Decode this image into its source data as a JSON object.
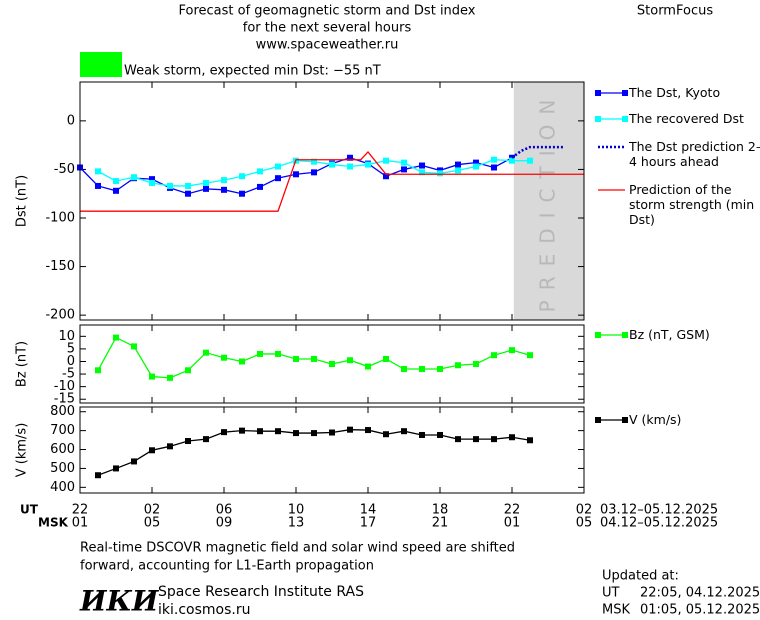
{
  "header": {
    "title_lines": [
      "Forecast of geomagnetic storm and Dst index",
      "for the next several hours",
      "www.spaceweather.ru"
    ],
    "brand": "StormFocus"
  },
  "status": {
    "label": "Weak storm, expected min Dst: −55 nT",
    "color": "#00ff00"
  },
  "chart_data": [
    {
      "type": "line",
      "ylabel": "Dst (nT)",
      "xlim": [
        0,
        28
      ],
      "ylim": [
        -205,
        40
      ],
      "yticks": [
        0,
        -50,
        -100,
        -150,
        -200
      ],
      "prediction_zone": {
        "x_start": 24.1,
        "label": "PREDICTION",
        "color": "#d9d9d9"
      },
      "series": [
        {
          "name": "The Dst, Kyoto",
          "color": "#0000ff",
          "marker": "square",
          "dashed": false,
          "x": [
            0,
            1,
            2,
            3,
            4,
            5,
            6,
            7,
            8,
            9,
            10,
            11,
            12,
            13,
            14,
            15,
            16,
            17,
            18,
            19,
            20,
            21,
            22,
            23,
            24
          ],
          "values": [
            -48,
            -67,
            -72,
            -59,
            -60,
            -69,
            -75,
            -70,
            -71,
            -75,
            -68,
            -59,
            -55,
            -53,
            -44,
            -38,
            -44,
            -57,
            -50,
            -46,
            -51,
            -45,
            -43,
            -48,
            -38
          ]
        },
        {
          "name": "The recovered Dst",
          "color": "#00ffff",
          "marker": "square",
          "dashed": false,
          "x": [
            1,
            2,
            3,
            4,
            5,
            6,
            7,
            8,
            9,
            10,
            11,
            12,
            13,
            14,
            15,
            16,
            17,
            18,
            19,
            20,
            21,
            22,
            23,
            24,
            25
          ],
          "values": [
            -52,
            -62,
            -58,
            -64,
            -67,
            -67,
            -64,
            -61,
            -57,
            -52,
            -47,
            -41,
            -42,
            -45,
            -47,
            -45,
            -41,
            -43,
            -53,
            -54,
            -51,
            -47,
            -40,
            -41,
            -41
          ]
        },
        {
          "name": "The Dst prediction 2–4 hours ahead",
          "color": "#0000cc",
          "marker": "none",
          "dashed": true,
          "x": [
            24,
            24.5,
            25,
            26.9
          ],
          "values": [
            -38,
            -31,
            -27,
            -27
          ]
        },
        {
          "name": "Prediction of the storm strength (min Dst)",
          "color": "#ff0000",
          "marker": "none",
          "dashed": false,
          "x": [
            0,
            11,
            12,
            15.6,
            16,
            17,
            28
          ],
          "values": [
            -93,
            -93,
            -40,
            -40,
            -32,
            -55,
            -55
          ]
        }
      ]
    },
    {
      "type": "line",
      "ylabel": "Bz (nT)",
      "xlim": [
        0,
        28
      ],
      "ylim": [
        -16.5,
        14.5
      ],
      "yticks": [
        10,
        5,
        0,
        -5,
        -10,
        -15
      ],
      "series": [
        {
          "name": "Bz (nT, GSM)",
          "color": "#00ff00",
          "marker": "square",
          "dashed": false,
          "x": [
            1,
            2,
            3,
            4,
            5,
            6,
            7,
            8,
            9,
            10,
            11,
            12,
            13,
            14,
            15,
            16,
            17,
            18,
            19,
            20,
            21,
            22,
            23,
            24,
            25
          ],
          "values": [
            -3.5,
            9.5,
            6,
            -6,
            -6.5,
            -3.5,
            3.5,
            1.5,
            0,
            3,
            3,
            1,
            1,
            -1,
            0.5,
            -2,
            1,
            -3,
            -3,
            -3,
            -1.5,
            -1,
            2.5,
            4.5,
            2.5
          ]
        }
      ]
    },
    {
      "type": "line",
      "ylabel": "V (km/s)",
      "xlim": [
        0,
        28
      ],
      "ylim": [
        370,
        825
      ],
      "yticks": [
        800,
        700,
        600,
        500,
        400
      ],
      "series": [
        {
          "name": "V (km/s)",
          "color": "#000000",
          "marker": "square",
          "dashed": false,
          "x": [
            1,
            2,
            3,
            4,
            5,
            6,
            7,
            8,
            9,
            10,
            11,
            12,
            13,
            14,
            15,
            16,
            17,
            18,
            19,
            20,
            21,
            22,
            23,
            24,
            25
          ],
          "values": [
            464,
            500,
            537,
            596,
            617,
            645,
            655,
            692,
            700,
            697,
            697,
            687,
            687,
            690,
            705,
            703,
            681,
            697,
            677,
            677,
            655,
            655,
            655,
            665,
            649
          ]
        }
      ],
      "xlabel_ut": "UT",
      "xlabel_msk": "MSK",
      "xticks": [
        {
          "value": 0,
          "label": "22"
        },
        {
          "value": 4,
          "label": "02"
        },
        {
          "value": 8,
          "label": "06"
        },
        {
          "value": 12,
          "label": "10"
        },
        {
          "value": 16,
          "label": "14"
        },
        {
          "value": 20,
          "label": "18"
        },
        {
          "value": 24,
          "label": "22"
        },
        {
          "value": 28,
          "label": "02"
        }
      ],
      "xticks_msk": [
        {
          "value": 0,
          "label": "01"
        },
        {
          "value": 4,
          "label": "05"
        },
        {
          "value": 8,
          "label": "09"
        },
        {
          "value": 12,
          "label": "13"
        },
        {
          "value": 16,
          "label": "17"
        },
        {
          "value": 20,
          "label": "21"
        },
        {
          "value": 24,
          "label": "01"
        },
        {
          "value": 28,
          "label": "05"
        }
      ],
      "range_ut": "03.12–05.12.2025",
      "range_msk": "04.12–05.12.2025"
    }
  ],
  "notes": {
    "lines": [
      "Real-time DSCOVR magnetic field and solar wind speed are shifted",
      "forward, accounting for L1-Earth propagation"
    ]
  },
  "institute": {
    "logo": "ИКИ",
    "name": "Space Research Institute RAS",
    "url": "iki.cosmos.ru"
  },
  "updated": {
    "label": "Updated at:",
    "rows": [
      {
        "zone": "UT",
        "time": "22:05, 04.12.2025"
      },
      {
        "zone": "MSK",
        "time": "01:05, 05.12.2025"
      }
    ]
  }
}
